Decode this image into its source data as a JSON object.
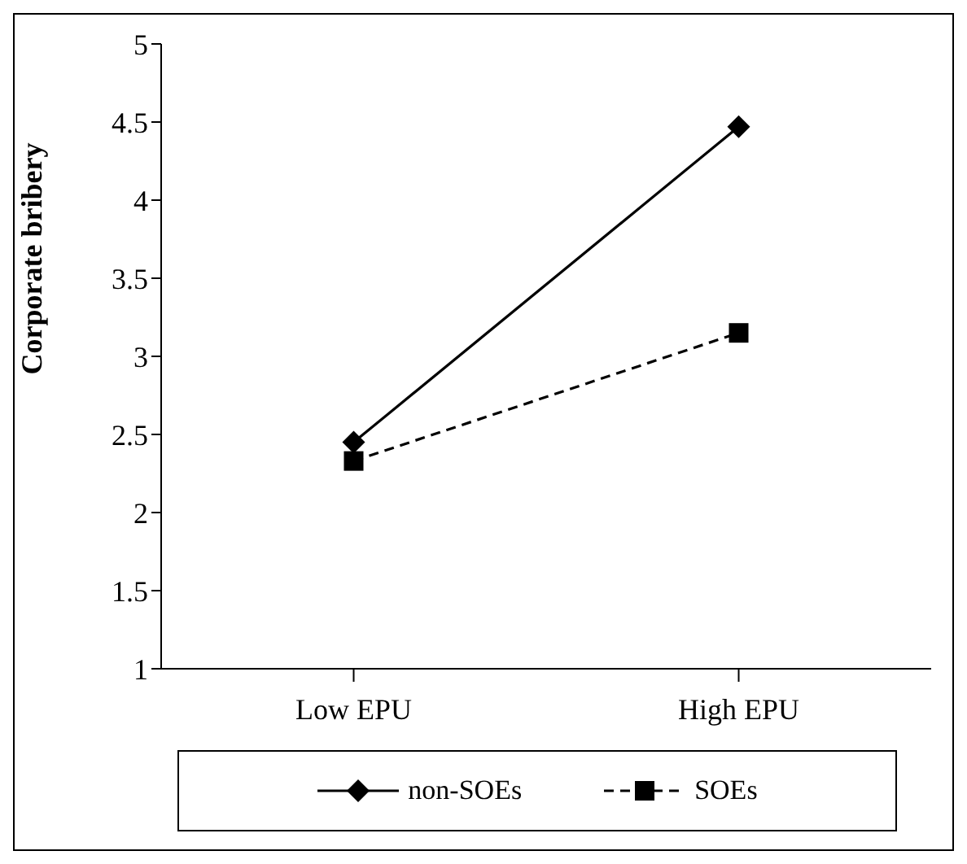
{
  "chart_data": {
    "type": "line",
    "ylabel": "Corporate bribery",
    "categories": [
      "Low EPU",
      "High EPU"
    ],
    "series": [
      {
        "name": "non-SOEs",
        "color": "#000000",
        "values": [
          2.45,
          4.47
        ],
        "marker": "diamond",
        "line_style": "solid"
      },
      {
        "name": "SOEs",
        "color": "#000000",
        "values": [
          2.33,
          3.15
        ],
        "marker": "square",
        "line_style": "dashed"
      }
    ],
    "ylim": [
      1,
      5
    ],
    "yticks": [
      1,
      1.5,
      2,
      2.5,
      3,
      3.5,
      4,
      4.5,
      5
    ],
    "grid": false,
    "legend": "bottom"
  }
}
